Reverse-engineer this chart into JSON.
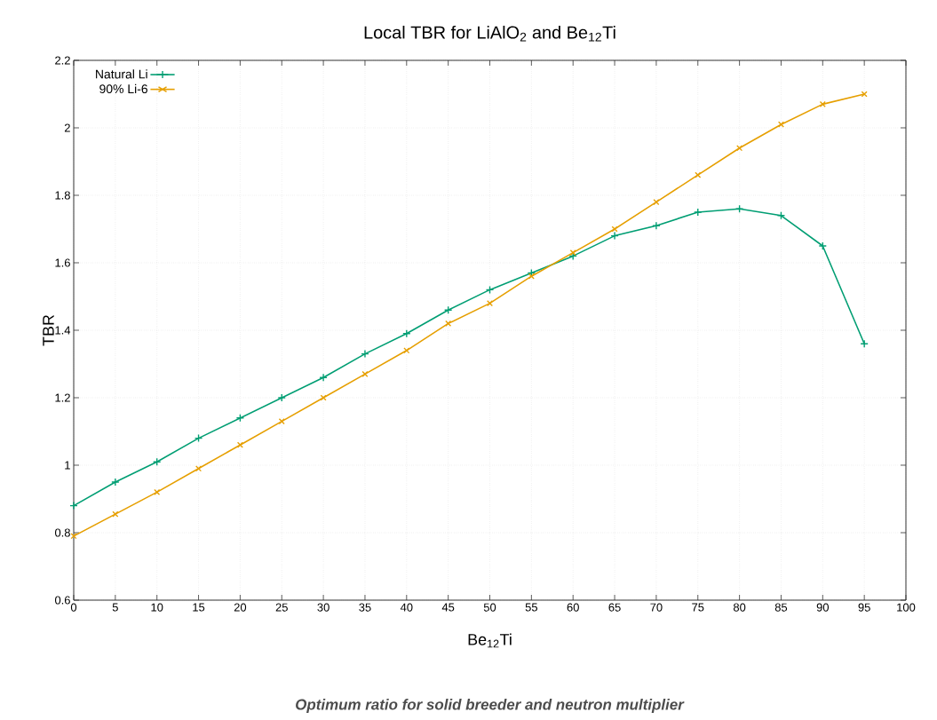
{
  "chart_data": {
    "type": "line",
    "title": "Local TBR for LiAlO$_{2}$ and Be$_{12}$Ti",
    "xlabel": "Be$_{12}$Ti",
    "ylabel": "TBR",
    "annotations": [
      "Optimum ratio for solid breeder and neutron multiplier"
    ],
    "x": [
      0,
      5,
      10,
      15,
      20,
      25,
      30,
      35,
      40,
      45,
      50,
      55,
      60,
      65,
      70,
      75,
      80,
      85,
      90,
      95
    ],
    "series": [
      {
        "name": "Natural Li",
        "color": "#009e73",
        "marker": "plus",
        "values": [
          0.88,
          0.95,
          1.01,
          1.08,
          1.14,
          1.2,
          1.26,
          1.33,
          1.39,
          1.46,
          1.52,
          1.57,
          1.62,
          1.68,
          1.71,
          1.75,
          1.76,
          1.74,
          1.65,
          1.36
        ]
      },
      {
        "name": "90% Li-6",
        "color": "#e69f00",
        "marker": "cross",
        "values": [
          0.79,
          0.855,
          0.92,
          0.99,
          1.06,
          1.13,
          1.2,
          1.27,
          1.34,
          1.42,
          1.48,
          1.56,
          1.63,
          1.7,
          1.78,
          1.86,
          1.94,
          2.01,
          2.07,
          2.1
        ]
      }
    ],
    "xlim": [
      0,
      100
    ],
    "xticks": [
      0,
      5,
      10,
      15,
      20,
      25,
      30,
      35,
      40,
      45,
      50,
      55,
      60,
      65,
      70,
      75,
      80,
      85,
      90,
      95,
      100
    ],
    "ylim": [
      0.6,
      2.2
    ],
    "yticks": [
      0.6,
      0.8,
      1,
      1.2,
      1.4,
      1.6,
      1.8,
      2,
      2.2
    ],
    "grid": true,
    "legend": "top left",
    "line_style": "solid"
  }
}
